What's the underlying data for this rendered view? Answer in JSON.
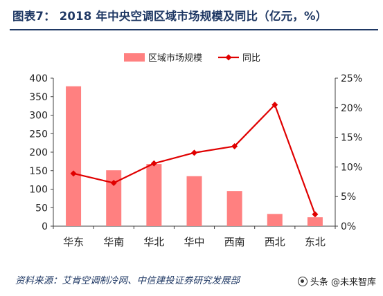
{
  "header": {
    "title": "图表7：  2018 年中央空调区域市场规模及同比（亿元，%）"
  },
  "footer": {
    "source": "资料来源：艾肯空调制冷网、中信建投证券研究发展部",
    "watermark": "头条 @未来智库"
  },
  "colors": {
    "bar": "#ff8080",
    "line": "#e00000",
    "title": "#1f3864",
    "axis": "#404040"
  },
  "chart_data": {
    "type": "bar+line",
    "categories": [
      "华东",
      "华南",
      "华北",
      "华中",
      "西南",
      "西北",
      "东北"
    ],
    "series": [
      {
        "name": "区域市场规模",
        "type": "bar",
        "axis": "left",
        "values": [
          378,
          151,
          168,
          135,
          95,
          33,
          24
        ]
      },
      {
        "name": "同比",
        "type": "line",
        "axis": "right",
        "values": [
          8.9,
          7.3,
          10.6,
          12.4,
          13.5,
          20.5,
          2.0
        ]
      }
    ],
    "yleft": {
      "min": 0,
      "max": 400,
      "ticks": [
        "0",
        "50",
        "100",
        "150",
        "200",
        "250",
        "300",
        "350",
        "400"
      ]
    },
    "yright": {
      "min": 0,
      "max": 25,
      "ticks": [
        "0%",
        "5%",
        "10%",
        "15%",
        "20%",
        "25%"
      ]
    },
    "legend": "top-center",
    "grid": false
  }
}
